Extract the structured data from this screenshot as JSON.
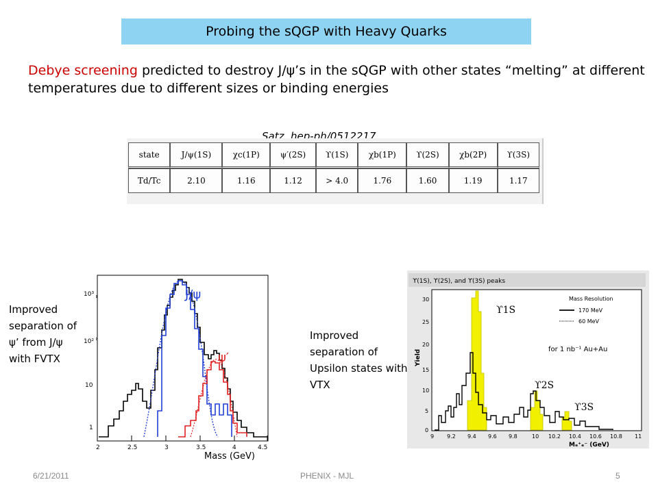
{
  "slide": {
    "title": "Probing the sQGP with Heavy Quarks",
    "intro_highlight": "Debye screening",
    "intro_rest": " predicted to destroy J/ψ’s in the sQGP with other states “melting” at different temperatures due to different sizes or binding energies",
    "citation": "Satz, hep-ph/0512217",
    "left_note": "Improved separation of ψ’ from J/ψ with FVTX",
    "mid_note": "Improved separation of Upsilon states with VTX"
  },
  "table": {
    "row1": [
      "state",
      "J/ψ(1S)",
      "χc(1P)",
      "ψ′(2S)",
      "ϒ(1S)",
      "χb(1P)",
      "ϒ(2S)",
      "χb(2P)",
      "ϒ(3S)"
    ],
    "row2": [
      "Td/Tc",
      "2.10",
      "1.16",
      "1.12",
      "> 4.0",
      "1.76",
      "1.60",
      "1.19",
      "1.17"
    ]
  },
  "left_plot": {
    "jpsi_label": "J/ψ",
    "psiprime_label": "ψ′",
    "xlabel": "Mass (GeV)",
    "xticks": [
      "2",
      "2.5",
      "3",
      "3.5",
      "4",
      "4.5"
    ],
    "yticks": [
      "10³",
      "10²",
      "10",
      "1"
    ],
    "colors": {
      "data": "#000000",
      "jpsi": "#1f3fd6",
      "psiprime": "#e02020"
    }
  },
  "right_plot": {
    "header": "ϒ(1S), ϒ(2S), and ϒ(3S) peaks",
    "legend_title": "Mass Resolution",
    "legend_170": "170 MeV",
    "legend_60": "60 MeV",
    "lumi": "for 1 nb⁻¹ Au+Au",
    "ylabel": "Yield",
    "xlabel": "Mₑ⁺ₑ⁻ (GeV)",
    "label_1s": "ϒ1S",
    "label_2s": "ϒ2S",
    "label_3s": "ϒ3S",
    "xticks": [
      "9",
      "9.2",
      "9.4",
      "9.6",
      "9.8",
      "10",
      "10.2",
      "10.4",
      "10.6",
      "10.8",
      "11"
    ],
    "yticks": [
      "0",
      "5",
      "10",
      "15",
      "20",
      "25",
      "30"
    ],
    "colors": {
      "fill": "#f0f000",
      "line": "#000000"
    }
  },
  "footer": {
    "date": "6/21/2011",
    "center": "PHENIX - MJL",
    "page": "5"
  }
}
